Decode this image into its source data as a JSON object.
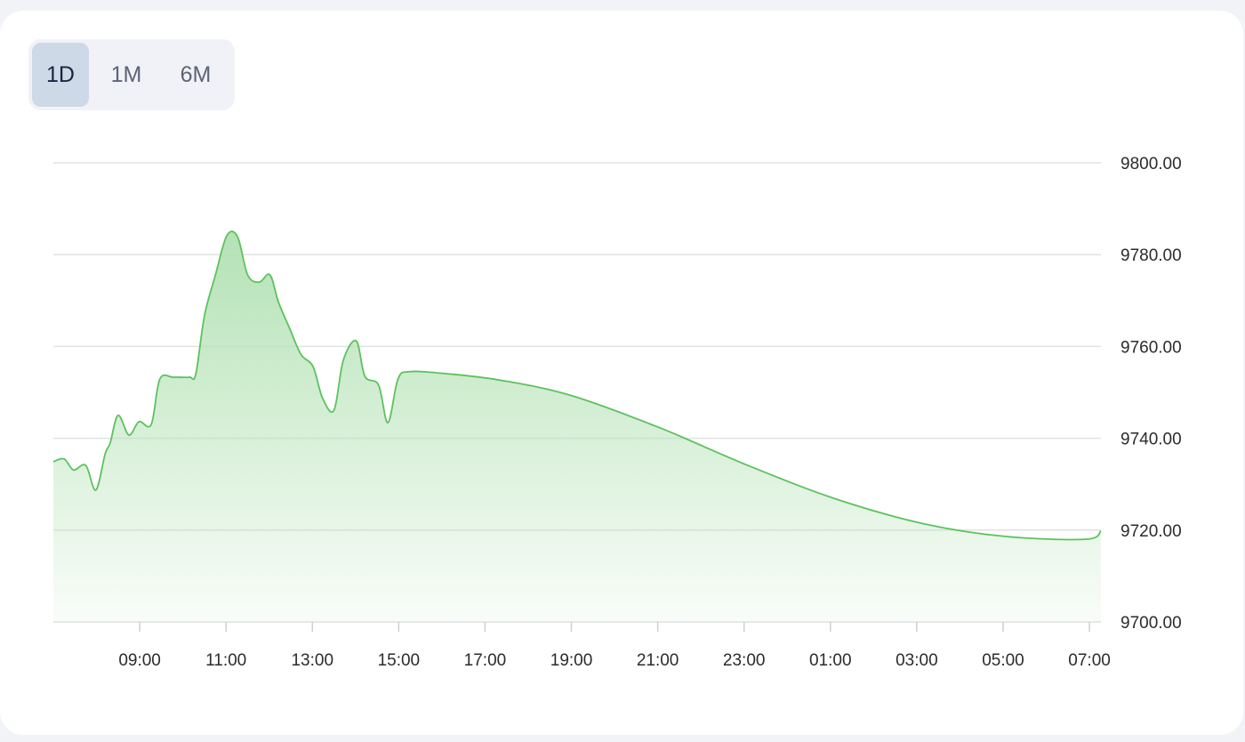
{
  "range_selector": {
    "options": [
      {
        "label": "1D",
        "active": true
      },
      {
        "label": "1M",
        "active": false
      },
      {
        "label": "6M",
        "active": false
      }
    ]
  },
  "colors": {
    "line": "#5cc25e",
    "fill_top": "#b4e2b5",
    "grid": "#e2e2e2",
    "active_button": "#cdd9e7"
  },
  "chart_data": {
    "type": "area",
    "title": "",
    "xlabel": "",
    "ylabel": "",
    "y_axis_position": "right",
    "ylim": [
      9700,
      9800
    ],
    "yticks": [
      "9800.00",
      "9780.00",
      "9760.00",
      "9740.00",
      "9720.00",
      "9700.00"
    ],
    "ytick_values": [
      9800,
      9780,
      9760,
      9740,
      9720,
      9700
    ],
    "xlim": [
      "07:00",
      "07:16"
    ],
    "xticks": [
      "09:00",
      "11:00",
      "13:00",
      "15:00",
      "17:00",
      "19:00",
      "21:00",
      "23:00",
      "01:00",
      "03:00",
      "05:00",
      "07:00"
    ],
    "grid": true,
    "x": [
      "07:00",
      "07:15",
      "07:28",
      "07:45",
      "07:59",
      "08:12",
      "08:19",
      "08:30",
      "08:45",
      "08:59",
      "09:16",
      "09:28",
      "09:47",
      "10:09",
      "10:18",
      "10:30",
      "10:45",
      "11:01",
      "11:16",
      "11:30",
      "11:46",
      "12:01",
      "12:13",
      "12:28",
      "12:44",
      "13:01",
      "13:14",
      "13:30",
      "13:43",
      "14:01",
      "14:13",
      "14:32",
      "14:45",
      "14:59",
      "15:15",
      "16:04",
      "17:19",
      "18:58",
      "21:01",
      "23:05",
      "01:09",
      "03:12",
      "05:04",
      "06:55",
      "07:16"
    ],
    "values": [
      9734.9,
      9735.5,
      9733.1,
      9734.1,
      9728.7,
      9736.6,
      9739.0,
      9745.0,
      9740.7,
      9743.6,
      9743.0,
      9752.9,
      9753.3,
      9753.3,
      9754.0,
      9766.7,
      9775.4,
      9784.1,
      9783.9,
      9775.6,
      9774.0,
      9775.6,
      9769.6,
      9764.1,
      9758.3,
      9755.6,
      9748.8,
      9746.1,
      9757.0,
      9761.2,
      9753.5,
      9751.6,
      9743.4,
      9752.9,
      9754.5,
      9754.1,
      9752.7,
      9749.4,
      9742.4,
      9734.1,
      9726.7,
      9721.3,
      9718.6,
      9718.0,
      9719.8
    ]
  }
}
